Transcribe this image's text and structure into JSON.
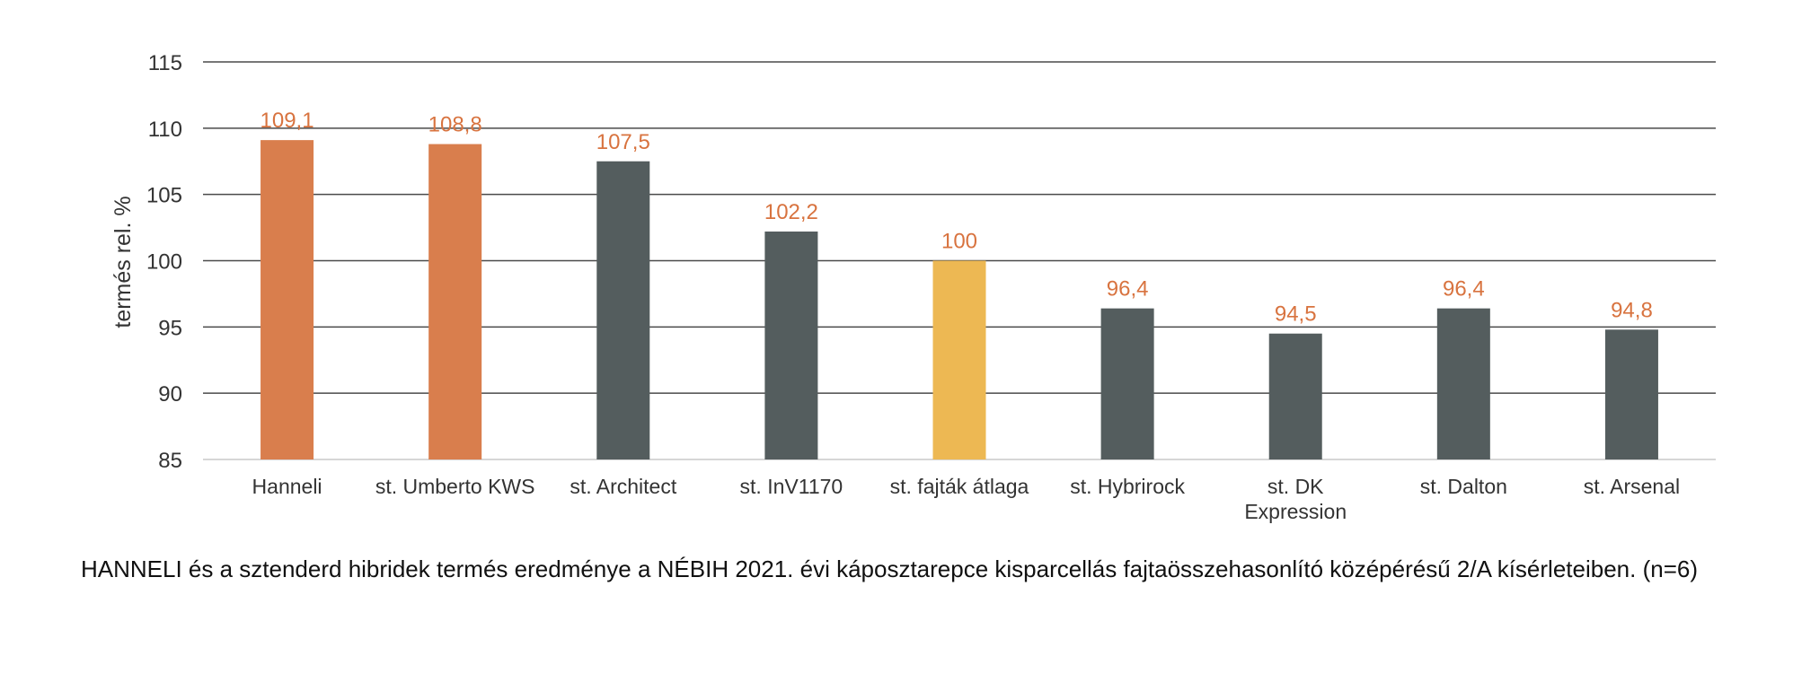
{
  "chart_data": {
    "type": "bar",
    "categories": [
      "Hanneli",
      "st. Umberto KWS",
      "st. Architect",
      "st. InV1170",
      "st. fajták átlaga",
      "st. Hybrirock",
      "st. DK Expression",
      "st. Dalton",
      "st. Arsenal"
    ],
    "category_label_lines": [
      [
        "Hanneli"
      ],
      [
        "st. Umberto KWS"
      ],
      [
        "st. Architect"
      ],
      [
        "st. InV1170"
      ],
      [
        "st. fajták átlaga"
      ],
      [
        "st. Hybrirock"
      ],
      [
        "st. DK",
        "Expression"
      ],
      [
        "st. Dalton"
      ],
      [
        "st. Arsenal"
      ]
    ],
    "values": [
      109.1,
      108.8,
      107.5,
      102.2,
      100,
      96.4,
      94.5,
      96.4,
      94.8
    ],
    "data_labels": [
      "109,1",
      "108,8",
      "107,5",
      "102,2",
      "100",
      "96,4",
      "94,5",
      "96,4",
      "94,8"
    ],
    "bar_colors": [
      "#D97E4D",
      "#D97E4D",
      "#545D5E",
      "#545D5E",
      "#EDB853",
      "#545D5E",
      "#545D5E",
      "#545D5E",
      "#545D5E"
    ],
    "label_color": "#D8733F",
    "ylabel": "termés rel. %",
    "xlabel": "",
    "ylim": [
      85,
      115
    ],
    "yticks": [
      85,
      90,
      95,
      100,
      105,
      110,
      115
    ],
    "grid": true,
    "legend": "none"
  },
  "caption": "HANNELI és a sztenderd hibridek termés eredménye a NÉBIH 2021. évi káposztarepce kisparcellás fajtaösszehasonlító középérésű 2/A kísérleteiben. (n=6)"
}
